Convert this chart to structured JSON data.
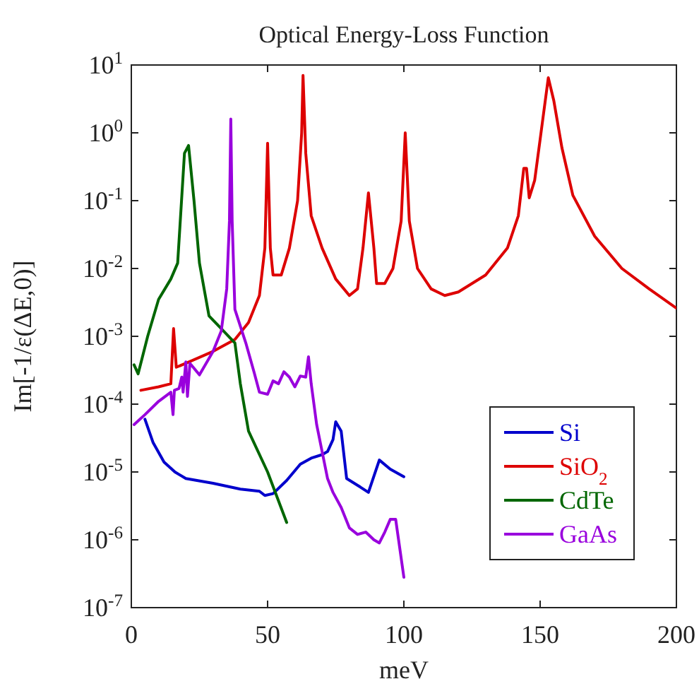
{
  "chart_data": {
    "type": "line",
    "title": "Optical Energy-Loss Function",
    "xlabel": "meV",
    "ylabel": "Im[-1/ε(ΔE,0)]",
    "log": "y",
    "grid": false,
    "legend": "bottom right",
    "line_style": "solid",
    "xlim": [
      0,
      200
    ],
    "xticks": [
      0,
      50,
      100,
      150,
      200
    ],
    "ylim": [
      1e-07,
      10
    ],
    "yticks": [
      {
        "value": 1e-07,
        "label": "10$^{-7}$"
      },
      {
        "value": 1e-06,
        "label": "10$^{-6}$"
      },
      {
        "value": 1e-05,
        "label": "10$^{-5}$"
      },
      {
        "value": 0.0001,
        "label": "10$^{-4}$"
      },
      {
        "value": 0.001,
        "label": "10$^{-3}$"
      },
      {
        "value": 0.01,
        "label": "10$^{-2}$"
      },
      {
        "value": 0.1,
        "label": "10$^{-1}$"
      },
      {
        "value": 1,
        "label": "10$^{0}$"
      },
      {
        "value": 10,
        "label": "10$^{1}$"
      }
    ],
    "series": [
      {
        "name": "Si",
        "color": "#0000cc",
        "x": [
          5,
          8,
          12,
          16,
          20,
          30,
          40,
          47,
          49,
          52,
          57,
          62,
          66,
          70,
          72,
          74,
          75,
          77,
          79,
          84,
          87,
          91,
          95,
          100
        ],
        "values": [
          6e-05,
          2.7e-05,
          1.4e-05,
          1e-05,
          8e-06,
          6.8e-06,
          5.6e-06,
          5.2e-06,
          4.5e-06,
          4.8e-06,
          7.5e-06,
          1.3e-05,
          1.6e-05,
          1.8e-05,
          2e-05,
          3e-05,
          5.5e-05,
          4e-05,
          8e-06,
          6e-06,
          5e-06,
          1.5e-05,
          1.1e-05,
          8.5e-06
        ]
      },
      {
        "name": "SiO$_{2}$",
        "color": "#dd0000",
        "x": [
          3.5,
          10,
          14.5,
          15.5,
          16.5,
          20,
          30,
          38,
          43,
          47,
          49,
          50,
          51,
          52,
          55,
          58,
          61,
          62.5,
          63,
          64,
          66,
          70,
          75,
          80,
          83,
          85,
          87,
          89,
          90,
          93,
          96,
          99,
          100.5,
          102,
          105,
          110,
          115,
          120,
          130,
          138,
          142,
          144,
          145,
          146,
          148,
          150,
          153,
          155,
          158,
          162,
          170,
          180,
          190,
          200
        ],
        "values": [
          0.00016,
          0.00018,
          0.0002,
          0.0013,
          0.00035,
          0.0004,
          0.0006,
          0.0009,
          0.0016,
          0.004,
          0.02,
          0.7,
          0.02,
          0.008,
          0.008,
          0.02,
          0.1,
          1,
          7,
          0.5,
          0.06,
          0.02,
          0.007,
          0.004,
          0.005,
          0.02,
          0.13,
          0.02,
          0.006,
          0.006,
          0.01,
          0.05,
          1,
          0.05,
          0.01,
          0.005,
          0.004,
          0.0045,
          0.008,
          0.02,
          0.06,
          0.3,
          0.3,
          0.11,
          0.2,
          0.8,
          6.5,
          3,
          0.6,
          0.12,
          0.03,
          0.01,
          0.005,
          0.0026
        ]
      },
      {
        "name": "CdTe",
        "color": "#006600",
        "x": [
          1,
          2.5,
          6,
          10,
          14.5,
          17,
          19.5,
          21,
          23,
          25,
          28.5,
          33,
          38,
          40,
          43,
          50,
          57
        ],
        "values": [
          0.00038,
          0.00028,
          0.001,
          0.0035,
          0.007,
          0.012,
          0.5,
          0.65,
          0.1,
          0.012,
          0.002,
          0.0013,
          0.0008,
          0.0002,
          4e-05,
          1e-05,
          1.8e-06
        ]
      },
      {
        "name": "GaAs",
        "color": "#9900dd",
        "x": [
          1,
          5,
          10,
          14.5,
          15.3,
          15.8,
          17.5,
          18.5,
          19,
          20,
          20.6,
          21.5,
          25,
          30,
          33,
          35,
          36,
          36.5,
          37,
          38,
          42,
          45,
          47,
          50,
          52,
          54,
          56,
          58,
          60,
          62,
          64,
          65,
          66,
          68,
          70,
          72,
          74,
          77,
          80,
          83,
          86,
          89,
          91,
          93,
          95,
          97,
          100
        ],
        "values": [
          5e-05,
          7e-05,
          0.00011,
          0.00015,
          7e-05,
          0.00016,
          0.00017,
          0.00025,
          0.00015,
          0.00042,
          0.00013,
          0.0004,
          0.00027,
          0.0006,
          0.0012,
          0.005,
          0.05,
          1.6,
          0.05,
          0.0025,
          0.0008,
          0.0003,
          0.00015,
          0.00014,
          0.00022,
          0.0002,
          0.0003,
          0.00025,
          0.00018,
          0.00026,
          0.00025,
          0.0005,
          0.0002,
          5e-05,
          2e-05,
          8e-06,
          5e-06,
          3e-06,
          1.5e-06,
          1.2e-06,
          1.3e-06,
          1e-06,
          9e-07,
          1.3e-06,
          2e-06,
          2e-06,
          2.8e-07
        ]
      }
    ]
  }
}
